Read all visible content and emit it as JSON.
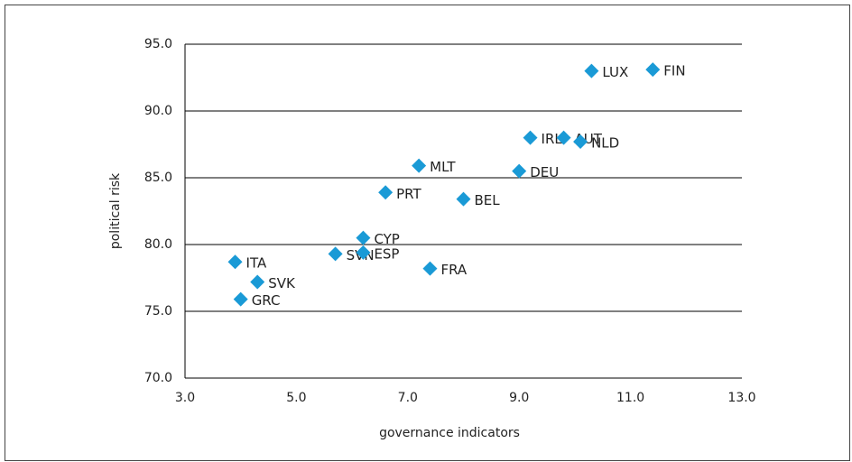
{
  "chart_data": {
    "type": "scatter",
    "xlabel": "governance indicators",
    "ylabel": "political risk",
    "labels": [
      "LUX",
      "FIN",
      "IRL",
      "AUT",
      "NLD",
      "MLT",
      "DEU",
      "PRT",
      "BEL",
      "CYP",
      "SVN",
      "ESP",
      "FRA",
      "ITA",
      "SVK",
      "GRC"
    ],
    "x": [
      10.3,
      11.4,
      9.2,
      9.8,
      10.1,
      7.2,
      9.0,
      6.6,
      8.0,
      6.2,
      5.7,
      6.2,
      7.4,
      3.9,
      4.3,
      4.0
    ],
    "y": [
      93.0,
      93.1,
      88.0,
      88.0,
      87.7,
      85.9,
      85.5,
      83.9,
      83.4,
      80.5,
      79.3,
      79.4,
      78.2,
      78.7,
      77.2,
      75.9
    ],
    "color": "#1a9ad6",
    "xlim": [
      3,
      13
    ],
    "ylim": [
      70,
      95
    ],
    "xticks": [
      {
        "value": 3,
        "label": "3.0"
      },
      {
        "value": 5,
        "label": "5.0"
      },
      {
        "value": 7,
        "label": "7.0"
      },
      {
        "value": 9,
        "label": "9.0"
      },
      {
        "value": 11,
        "label": "11.0"
      },
      {
        "value": 13,
        "label": "13.0"
      }
    ],
    "yticks": [
      {
        "value": 70,
        "label": "70.0"
      },
      {
        "value": 75,
        "label": "75.0"
      },
      {
        "value": 80,
        "label": "80.0"
      },
      {
        "value": 85,
        "label": "85.0"
      },
      {
        "value": 90,
        "label": "90.0"
      },
      {
        "value": 95,
        "label": "95.0"
      }
    ],
    "grid": true
  }
}
